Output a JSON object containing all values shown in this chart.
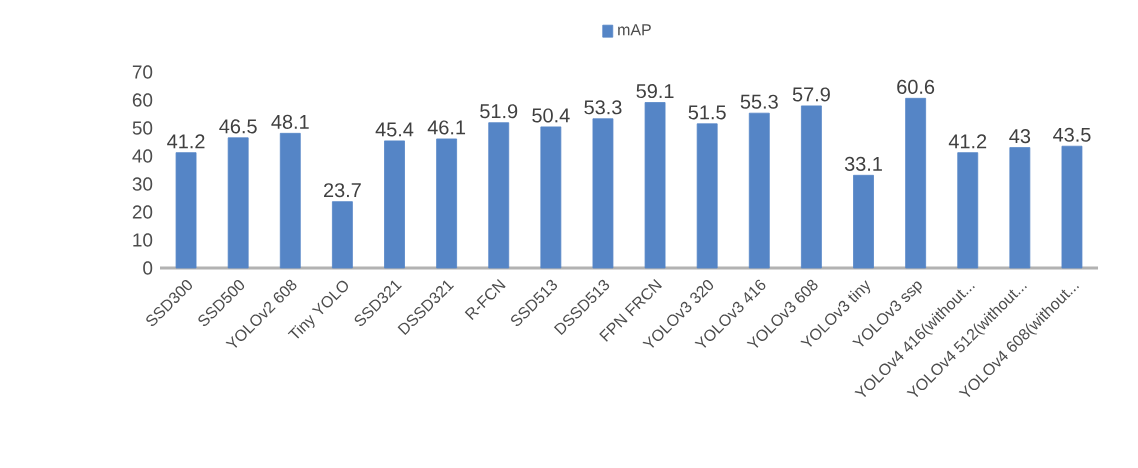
{
  "chart_data": {
    "type": "bar",
    "categories": [
      "SSD300",
      "SSD500",
      "YOLOv2 608",
      "Tiny YOLO",
      "SSD321",
      "DSSD321",
      "R-FCN",
      "SSD513",
      "DSSD513",
      "FPN FRCN",
      "YOLOv3 320",
      "YOLOv3 416",
      "YOLOv3 608",
      "YOLOv3 tiny",
      "YOLOv3 ssp",
      "YOLOv4 416(without...",
      "YOLOv4 512(without...",
      "YOLOv4 608(without..."
    ],
    "series": [
      {
        "name": "mAP",
        "color": "#5585c6",
        "values": [
          41.2,
          46.5,
          48.1,
          23.7,
          45.4,
          46.1,
          51.9,
          50.4,
          53.3,
          59.1,
          51.5,
          55.3,
          57.9,
          33.1,
          60.6,
          41.2,
          43,
          43.5
        ]
      }
    ],
    "ylim": [
      0,
      70
    ],
    "yticks": [
      0,
      10,
      20,
      30,
      40,
      50,
      60,
      70
    ],
    "data_labels": true,
    "legend": "top",
    "grid": false
  }
}
